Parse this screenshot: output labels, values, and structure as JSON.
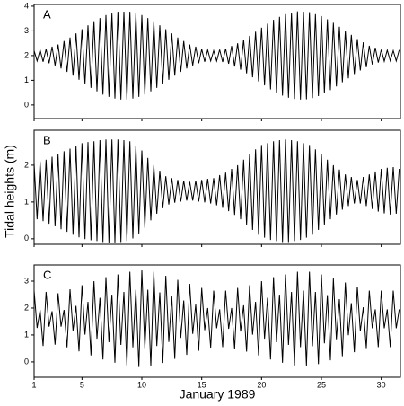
{
  "chart_data": {
    "type": "line",
    "xlabel": "January 1989",
    "ylabel": "Tidal heights (m)",
    "color": "#000000",
    "xlim": [
      1,
      31.6
    ],
    "xticks": [
      1,
      5,
      10,
      15,
      20,
      25,
      30
    ],
    "x": [
      1,
      1.25,
      1.5,
      1.75,
      2,
      2.25,
      2.5,
      2.75,
      3,
      3.25,
      3.5,
      3.75,
      4,
      4.25,
      4.5,
      4.75,
      5,
      5.25,
      5.5,
      5.75,
      6,
      6.25,
      6.5,
      6.75,
      7,
      7.25,
      7.5,
      7.75,
      8,
      8.25,
      8.5,
      8.75,
      9,
      9.25,
      9.5,
      9.75,
      10,
      10.25,
      10.5,
      10.75,
      11,
      11.25,
      11.5,
      11.75,
      12,
      12.25,
      12.5,
      12.75,
      13,
      13.25,
      13.5,
      13.75,
      14,
      14.25,
      14.5,
      14.75,
      15,
      15.25,
      15.5,
      15.75,
      16,
      16.25,
      16.5,
      16.75,
      17,
      17.25,
      17.5,
      17.75,
      18,
      18.25,
      18.5,
      18.75,
      19,
      19.25,
      19.5,
      19.75,
      20,
      20.25,
      20.5,
      20.75,
      21,
      21.25,
      21.5,
      21.75,
      22,
      22.25,
      22.5,
      22.75,
      23,
      23.25,
      23.5,
      23.75,
      24,
      24.25,
      24.5,
      24.75,
      25,
      25.25,
      25.5,
      25.75,
      26,
      26.25,
      26.5,
      26.75,
      27,
      27.25,
      27.5,
      27.75,
      28,
      28.25,
      28.5,
      28.75,
      29,
      29.25,
      29.5,
      29.75,
      30,
      30.25,
      30.5,
      30.75,
      31,
      31.25,
      31.5
    ],
    "panels": [
      {
        "label": "A",
        "ylim": [
          -0.55,
          4.07
        ],
        "yticks": [
          0,
          1,
          2,
          3,
          4
        ],
        "values": [
          2.2,
          1.78,
          2.23,
          1.75,
          2.26,
          1.69,
          2.36,
          1.6,
          2.45,
          1.48,
          2.59,
          1.34,
          2.73,
          1.19,
          2.9,
          1.02,
          3.07,
          0.85,
          3.23,
          0.69,
          3.39,
          0.55,
          3.52,
          0.42,
          3.64,
          0.33,
          3.71,
          0.26,
          3.78,
          0.22,
          3.78,
          0.22,
          3.78,
          0.26,
          3.71,
          0.33,
          3.64,
          0.42,
          3.52,
          0.55,
          3.39,
          0.69,
          3.23,
          0.85,
          3.07,
          1.02,
          2.9,
          1.19,
          2.73,
          1.34,
          2.59,
          1.48,
          2.45,
          1.6,
          2.36,
          1.69,
          2.26,
          1.75,
          2.23,
          1.78,
          2.2,
          1.78,
          2.24,
          1.74,
          2.28,
          1.67,
          2.39,
          1.56,
          2.5,
          1.43,
          2.65,
          1.28,
          2.8,
          1.12,
          2.97,
          0.95,
          3.13,
          0.79,
          3.29,
          0.63,
          3.45,
          0.49,
          3.57,
          0.38,
          3.68,
          0.29,
          3.74,
          0.24,
          3.79,
          0.22,
          3.78,
          0.23,
          3.76,
          0.28,
          3.68,
          0.36,
          3.6,
          0.47,
          3.47,
          0.6,
          3.33,
          0.75,
          3.17,
          0.92,
          3.0,
          1.08,
          2.84,
          1.25,
          2.67,
          1.4,
          2.54,
          1.53,
          2.4,
          1.64,
          2.32,
          1.72,
          2.24,
          1.77,
          2.22,
          1.79,
          2.2,
          1.78,
          2.23
        ]
      },
      {
        "label": "B",
        "ylim": [
          -0.15,
          2.95
        ],
        "yticks": [
          0,
          1,
          2
        ],
        "values": [
          2.05,
          0.53,
          2.1,
          0.48,
          2.15,
          0.41,
          2.23,
          0.34,
          2.3,
          0.26,
          2.38,
          0.19,
          2.45,
          0.11,
          2.53,
          0.04,
          2.6,
          -0.01,
          2.63,
          -0.04,
          2.65,
          -0.06,
          2.68,
          -0.09,
          2.7,
          -0.1,
          2.7,
          -0.1,
          2.7,
          -0.09,
          2.68,
          -0.06,
          2.65,
          0.01,
          2.53,
          0.14,
          2.4,
          0.3,
          2.2,
          0.5,
          2.0,
          0.68,
          1.85,
          0.83,
          1.7,
          0.93,
          1.65,
          0.98,
          1.6,
          1.01,
          1.58,
          1.04,
          1.55,
          1.04,
          1.58,
          1.01,
          1.6,
          0.99,
          1.63,
          0.96,
          1.65,
          0.91,
          1.73,
          0.84,
          1.8,
          0.75,
          1.9,
          0.65,
          2.0,
          0.53,
          2.15,
          0.38,
          2.3,
          0.24,
          2.43,
          0.11,
          2.55,
          0.03,
          2.6,
          -0.03,
          2.65,
          -0.06,
          2.68,
          -0.09,
          2.7,
          -0.09,
          2.68,
          -0.06,
          2.65,
          -0.03,
          2.6,
          0.03,
          2.55,
          0.11,
          2.43,
          0.24,
          2.3,
          0.38,
          2.15,
          0.53,
          2.0,
          0.66,
          1.88,
          0.79,
          1.75,
          0.89,
          1.68,
          0.96,
          1.6,
          0.96,
          1.68,
          0.89,
          1.75,
          0.81,
          1.83,
          0.74,
          1.9,
          0.69,
          1.93,
          0.66,
          1.95,
          0.68,
          1.9
        ]
      },
      {
        "label": "C",
        "ylim": [
          -0.57,
          3.6
        ],
        "yticks": [
          0,
          1,
          2,
          3
        ],
        "values": [
          2.65,
          1.26,
          1.93,
          0.59,
          2.6,
          1.31,
          1.88,
          0.64,
          2.55,
          1.31,
          1.93,
          0.54,
          2.7,
          1.16,
          2.08,
          0.39,
          2.85,
          1.01,
          2.23,
          0.24,
          3.0,
          0.86,
          2.38,
          0.09,
          3.15,
          0.73,
          2.5,
          -0.03,
          3.25,
          0.63,
          2.6,
          -0.13,
          3.35,
          0.54,
          2.68,
          -0.19,
          3.4,
          0.51,
          2.68,
          -0.16,
          3.35,
          0.59,
          2.58,
          -0.04,
          3.2,
          0.74,
          2.43,
          0.11,
          3.05,
          0.89,
          2.28,
          0.26,
          2.9,
          1.04,
          2.13,
          0.41,
          2.75,
          1.18,
          2.0,
          0.53,
          2.65,
          1.25,
          1.95,
          0.55,
          2.65,
          1.23,
          2.0,
          0.48,
          2.75,
          1.13,
          2.1,
          0.38,
          2.85,
          1.01,
          2.23,
          0.24,
          3.0,
          0.86,
          2.38,
          0.09,
          3.15,
          0.73,
          2.5,
          -0.03,
          3.25,
          0.63,
          2.6,
          -0.13,
          3.35,
          0.55,
          2.65,
          -0.15,
          3.35,
          0.58,
          2.6,
          -0.08,
          3.25,
          0.69,
          2.48,
          0.06,
          3.1,
          0.84,
          2.33,
          0.21,
          2.95,
          0.99,
          2.18,
          0.36,
          2.8,
          1.14,
          2.03,
          0.51,
          2.65,
          1.25,
          1.95,
          0.55,
          2.65,
          1.25,
          1.95,
          0.55,
          2.65,
          1.25,
          1.95
        ]
      }
    ]
  }
}
